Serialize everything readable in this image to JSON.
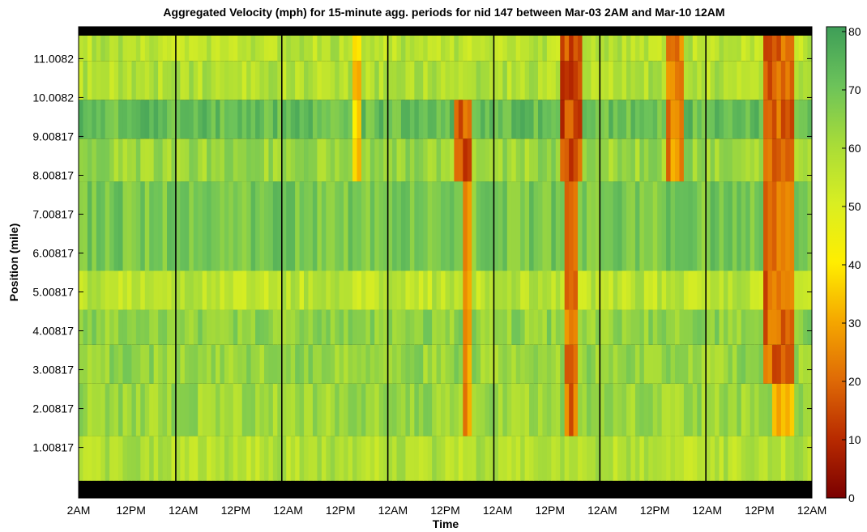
{
  "chart_data": {
    "type": "heatmap",
    "title": "Aggregated Velocity (mph) for 15-minute agg. periods for nid 147  between Mar-03  2AM and Mar-10 12AM",
    "xlabel": "Time",
    "ylabel": "Position (mile)",
    "x_tick_labels": [
      "2AM",
      "12PM",
      "12AM",
      "12PM",
      "12AM",
      "12PM",
      "12AM",
      "12PM",
      "12AM",
      "12PM",
      "12AM",
      "12PM",
      "12AM",
      "12PM",
      "12AM"
    ],
    "x_range_hours": [
      0,
      166
    ],
    "y_tick_labels": [
      "1.00817",
      "2.00817",
      "3.00817",
      "4.00817",
      "5.00817",
      "6.00817",
      "7.00817",
      "8.00817",
      "9.00817",
      "10.0082",
      "11.0082"
    ],
    "y_range_mile": [
      0.0,
      11.6
    ],
    "colorbar": {
      "ticks": [
        "0",
        "10",
        "20",
        "30",
        "40",
        "50",
        "60",
        "70",
        "80"
      ],
      "range": [
        0,
        80
      ],
      "colormap": [
        "#7a0000",
        "#b82a00",
        "#df6a06",
        "#f5a700",
        "#ffee00",
        "#d9ee22",
        "#a8dc38",
        "#6cc35a",
        "#3e9e58"
      ]
    },
    "midnight_lines_hours": [
      22,
      46,
      70,
      94,
      118,
      142
    ],
    "segments": [
      {
        "from": 0.15,
        "to": 1.3,
        "base_speed": 58
      },
      {
        "from": 1.3,
        "to": 2.65,
        "base_speed": 62
      },
      {
        "from": 2.65,
        "to": 3.65,
        "base_speed": 63
      },
      {
        "from": 3.65,
        "to": 4.55,
        "base_speed": 64
      },
      {
        "from": 4.55,
        "to": 5.55,
        "base_speed": 56
      },
      {
        "from": 5.55,
        "to": 7.85,
        "base_speed": 68
      },
      {
        "from": 7.85,
        "to": 8.95,
        "base_speed": 62
      },
      {
        "from": 8.95,
        "to": 9.95,
        "base_speed": 71
      },
      {
        "from": 9.95,
        "to": 10.95,
        "base_speed": 58
      },
      {
        "from": 10.95,
        "to": 11.6,
        "base_speed": 57
      }
    ],
    "congestion_events": [
      {
        "start_h": 62.5,
        "end_h": 64.2,
        "from_mile": 7.0,
        "to_mile": 11.5,
        "min_speed": 28
      },
      {
        "start_h": 85.5,
        "end_h": 88.5,
        "from_mile": 7.0,
        "to_mile": 10.0,
        "min_speed": 10
      },
      {
        "start_h": 87.0,
        "end_h": 88.5,
        "from_mile": 0.9,
        "to_mile": 7.0,
        "min_speed": 18
      },
      {
        "start_h": 109.5,
        "end_h": 113.5,
        "from_mile": 7.0,
        "to_mile": 11.6,
        "min_speed": 8
      },
      {
        "start_h": 110.5,
        "end_h": 112.5,
        "from_mile": 1.3,
        "to_mile": 7.0,
        "min_speed": 14
      },
      {
        "start_h": 133.5,
        "end_h": 137.0,
        "from_mile": 7.0,
        "to_mile": 11.6,
        "min_speed": 18
      },
      {
        "start_h": 155.0,
        "end_h": 162.0,
        "from_mile": 2.9,
        "to_mile": 11.6,
        "min_speed": 12
      },
      {
        "start_h": 157.5,
        "end_h": 161.5,
        "from_mile": 0.9,
        "to_mile": 2.9,
        "min_speed": 22
      }
    ]
  }
}
